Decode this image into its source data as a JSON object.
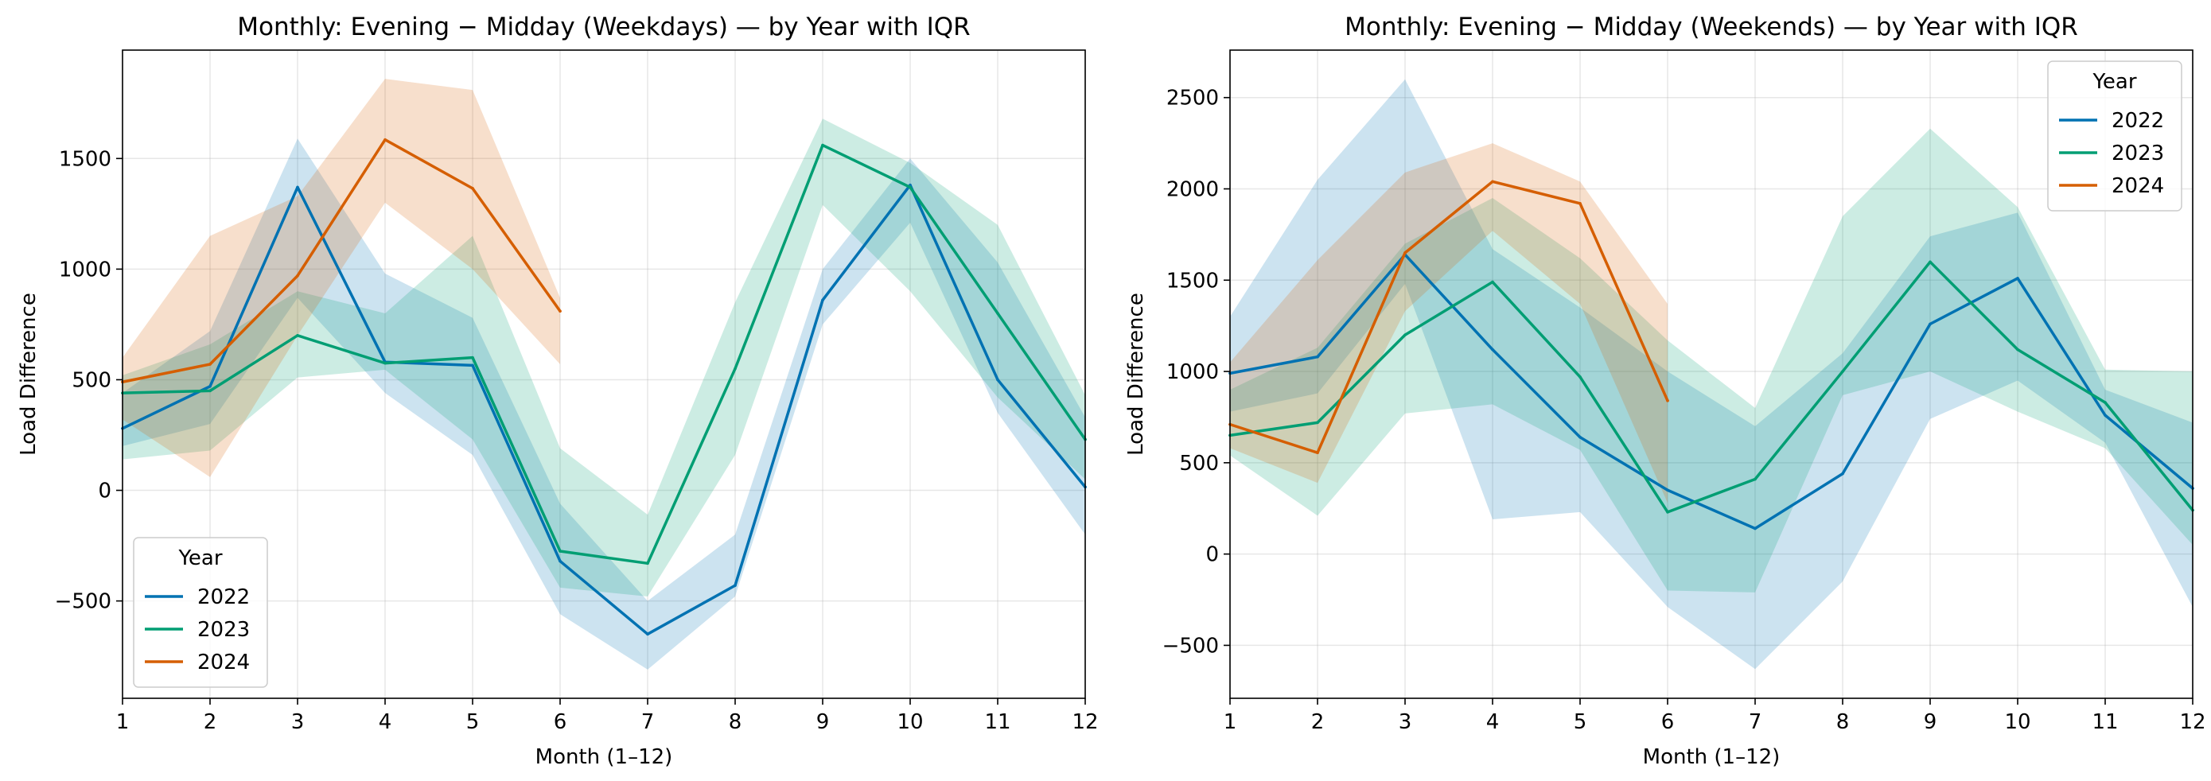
{
  "chart_data": [
    {
      "type": "line",
      "title": "Monthly: Evening − Midday (Weekdays) — by Year with IQR",
      "xlabel": "Month (1–12)",
      "ylabel": "Load Difference",
      "xlim": [
        1,
        12
      ],
      "ylim": [
        -940,
        1990
      ],
      "xticks": [
        1,
        2,
        3,
        4,
        5,
        6,
        7,
        8,
        9,
        10,
        11,
        12
      ],
      "yticks": [
        -500,
        0,
        500,
        1000,
        1500
      ],
      "ytick_labels": [
        "−500",
        "0",
        "500",
        "1000",
        "1500"
      ],
      "grid": true,
      "legend": {
        "title": "Year",
        "placement": "lower-left"
      },
      "series": [
        {
          "name": "2022",
          "color": "#0072b2",
          "x": [
            1,
            2,
            3,
            4,
            5,
            6,
            7,
            8,
            9,
            10,
            11,
            12
          ],
          "values": [
            280,
            470,
            1370,
            580,
            565,
            -320,
            -650,
            -430,
            860,
            1380,
            500,
            15
          ],
          "q1": [
            200,
            300,
            870,
            440,
            160,
            -560,
            -810,
            -480,
            750,
            1210,
            350,
            -200
          ],
          "q3": [
            440,
            720,
            1590,
            980,
            780,
            -60,
            -500,
            -200,
            1000,
            1500,
            1030,
            330
          ]
        },
        {
          "name": "2023",
          "color": "#009e73",
          "x": [
            1,
            2,
            3,
            4,
            5,
            6,
            7,
            8,
            9,
            10,
            11,
            12
          ],
          "values": [
            440,
            450,
            700,
            575,
            600,
            -275,
            -330,
            550,
            1560,
            1370,
            800,
            230
          ],
          "q1": [
            140,
            180,
            510,
            545,
            230,
            -440,
            -480,
            160,
            1290,
            900,
            420,
            50
          ],
          "q3": [
            520,
            660,
            900,
            800,
            1150,
            190,
            -110,
            850,
            1680,
            1480,
            1200,
            430
          ]
        },
        {
          "name": "2024",
          "color": "#d55e00",
          "x": [
            1,
            2,
            3,
            4,
            5,
            6
          ],
          "values": [
            490,
            570,
            970,
            1585,
            1365,
            810
          ],
          "q1": [
            320,
            60,
            700,
            1300,
            1000,
            570
          ],
          "q3": [
            600,
            1150,
            1330,
            1860,
            1810,
            870
          ]
        }
      ]
    },
    {
      "type": "line",
      "title": "Monthly: Evening − Midday (Weekends) — by Year with IQR",
      "xlabel": "Month (1–12)",
      "ylabel": "Load Difference",
      "xlim": [
        1,
        12
      ],
      "ylim": [
        -790,
        2760
      ],
      "xticks": [
        1,
        2,
        3,
        4,
        5,
        6,
        7,
        8,
        9,
        10,
        11,
        12
      ],
      "yticks": [
        -500,
        0,
        500,
        1000,
        1500,
        2000,
        2500
      ],
      "ytick_labels": [
        "−500",
        "0",
        "500",
        "1000",
        "1500",
        "2000",
        "2500"
      ],
      "grid": true,
      "legend": {
        "title": "Year",
        "placement": "upper-right"
      },
      "series": [
        {
          "name": "2022",
          "color": "#0072b2",
          "x": [
            1,
            2,
            3,
            4,
            5,
            6,
            7,
            8,
            9,
            10,
            11,
            12
          ],
          "values": [
            990,
            1080,
            1640,
            1120,
            640,
            350,
            140,
            440,
            1260,
            1510,
            760,
            360
          ],
          "q1": [
            780,
            880,
            1480,
            190,
            230,
            -290,
            -630,
            -150,
            740,
            950,
            610,
            -290
          ],
          "q3": [
            1300,
            2050,
            2600,
            1670,
            1350,
            1000,
            700,
            1100,
            1740,
            1870,
            900,
            720
          ]
        },
        {
          "name": "2023",
          "color": "#009e73",
          "x": [
            1,
            2,
            3,
            4,
            5,
            6,
            7,
            8,
            9,
            10,
            11,
            12
          ],
          "values": [
            650,
            720,
            1200,
            1490,
            970,
            230,
            410,
            1000,
            1600,
            1120,
            830,
            240
          ],
          "q1": [
            540,
            210,
            770,
            820,
            570,
            -200,
            -210,
            870,
            1000,
            780,
            580,
            50
          ],
          "q3": [
            900,
            1130,
            1700,
            1950,
            1620,
            1170,
            800,
            1850,
            2330,
            1900,
            1010,
            1000
          ]
        },
        {
          "name": "2024",
          "color": "#d55e00",
          "x": [
            1,
            2,
            3,
            4,
            5,
            6
          ],
          "values": [
            710,
            555,
            1650,
            2040,
            1920,
            840
          ],
          "q1": [
            580,
            390,
            1330,
            1770,
            1370,
            280
          ],
          "q3": [
            1050,
            1610,
            2090,
            2250,
            2040,
            1370
          ]
        }
      ]
    }
  ]
}
